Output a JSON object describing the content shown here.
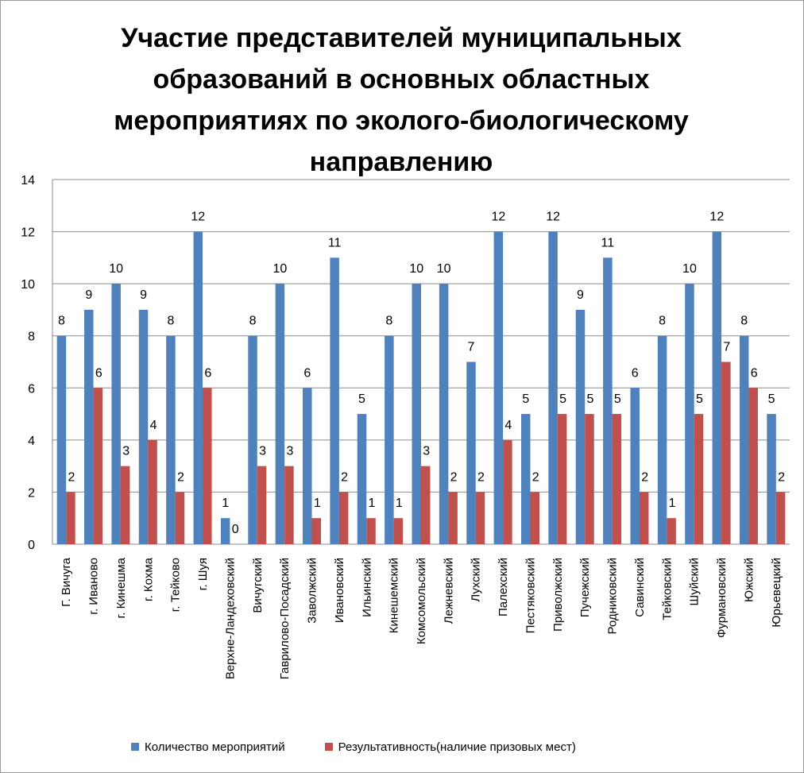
{
  "chart_data": {
    "type": "bar",
    "title": "Участие  представителей муниципальных\nобразований  в основных областных\nмероприятиях по эколого-биологическому\nнаправлению",
    "categories": [
      "Г. Вичуга",
      "г. Иваново",
      "г. Кинешма",
      "г. Кохма",
      "г. Тейково",
      "г. Шуя",
      "Верхне-Ландеховский",
      "Вичугский",
      "Гаврилово-Посадский",
      "Заволжский",
      "Ивановский",
      "Ильинский",
      "Кинешемский",
      "Комсомольский",
      "Лежневский",
      "Лухский",
      "Палехский",
      "Пестяковский",
      "Приволжский",
      "Пучежский",
      "Родниковский",
      "Савинский",
      "Тейковский",
      "Шуйский",
      "Фурмановский",
      "Южский",
      "Юрьевецкий"
    ],
    "series": [
      {
        "name": "Количество мероприятий",
        "color": "#4F81BD",
        "values": [
          8,
          9,
          10,
          9,
          8,
          12,
          1,
          8,
          10,
          6,
          11,
          5,
          8,
          10,
          10,
          7,
          12,
          5,
          12,
          9,
          11,
          6,
          8,
          10,
          12,
          8,
          5
        ]
      },
      {
        "name": "Результативность(наличие призовых мест)",
        "color": "#C0504D",
        "values": [
          2,
          6,
          3,
          4,
          2,
          6,
          0,
          3,
          3,
          1,
          2,
          1,
          1,
          3,
          2,
          2,
          4,
          2,
          5,
          5,
          5,
          2,
          1,
          5,
          7,
          6,
          2
        ]
      }
    ],
    "ylim": [
      0,
      14
    ],
    "yticks": [
      0,
      2,
      4,
      6,
      8,
      10,
      12,
      14
    ],
    "grid": true,
    "legend_position": "bottom",
    "xlabel": "",
    "ylabel": ""
  }
}
